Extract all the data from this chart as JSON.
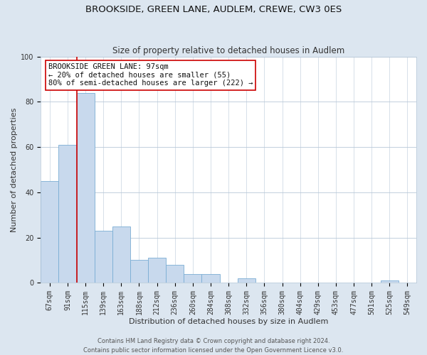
{
  "title": "BROOKSIDE, GREEN LANE, AUDLEM, CREWE, CW3 0ES",
  "subtitle": "Size of property relative to detached houses in Audlem",
  "xlabel": "Distribution of detached houses by size in Audlem",
  "ylabel": "Number of detached properties",
  "bar_labels": [
    "67sqm",
    "91sqm",
    "115sqm",
    "139sqm",
    "163sqm",
    "188sqm",
    "212sqm",
    "236sqm",
    "260sqm",
    "284sqm",
    "308sqm",
    "332sqm",
    "356sqm",
    "380sqm",
    "404sqm",
    "429sqm",
    "453sqm",
    "477sqm",
    "501sqm",
    "525sqm",
    "549sqm"
  ],
  "bar_values": [
    45,
    61,
    84,
    23,
    25,
    10,
    11,
    8,
    4,
    4,
    0,
    2,
    0,
    0,
    0,
    0,
    0,
    0,
    0,
    1,
    0
  ],
  "bar_color": "#c8d9ed",
  "bar_edge_color": "#7aadd4",
  "vline_color": "#cc0000",
  "vline_x_index": 1.5,
  "ylim": [
    0,
    100
  ],
  "annotation_title": "BROOKSIDE GREEN LANE: 97sqm",
  "annotation_line1": "← 20% of detached houses are smaller (55)",
  "annotation_line2": "80% of semi-detached houses are larger (222) →",
  "annotation_box_facecolor": "#ffffff",
  "annotation_box_edgecolor": "#cc0000",
  "footer_line1": "Contains HM Land Registry data © Crown copyright and database right 2024.",
  "footer_line2": "Contains public sector information licensed under the Open Government Licence v3.0.",
  "bg_color": "#dce6f0",
  "plot_bg_color": "#ffffff",
  "grid_color": "#b8c8d8",
  "title_fontsize": 9.5,
  "subtitle_fontsize": 8.5,
  "axis_label_fontsize": 8,
  "tick_fontsize": 7,
  "annotation_fontsize": 7.5,
  "footer_fontsize": 6
}
